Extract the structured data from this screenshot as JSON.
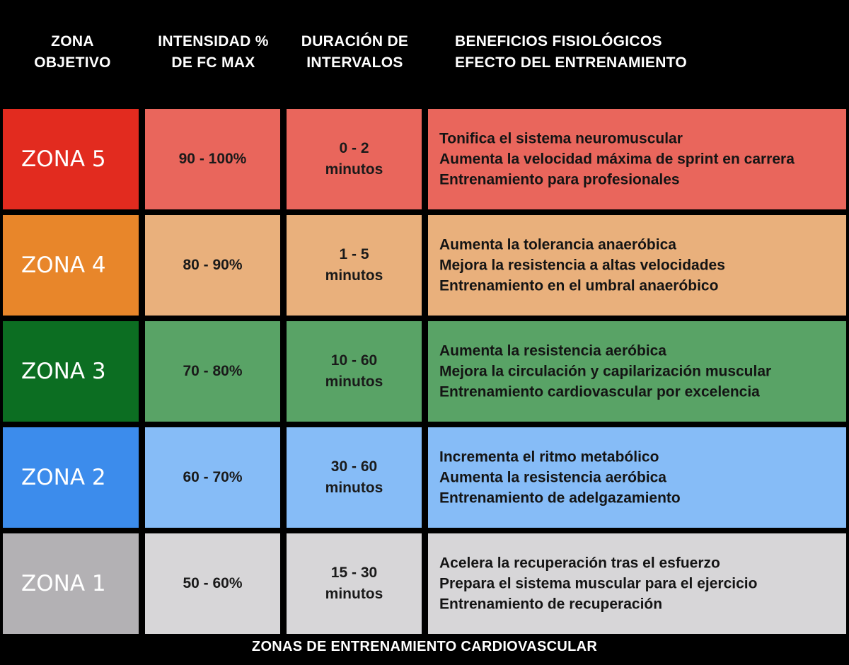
{
  "headers": {
    "zone": "ZONA\nOBJETIVO",
    "intensity": "INTENSIDAD %\nDE FC MAX",
    "duration": "DURACIÓN DE\nINTERVALOS",
    "benefits": "BENEFICIOS FISIOLÓGICOS\nEFECTO DEL ENTRENAMIENTO"
  },
  "rows": [
    {
      "zone": "ZONA 5",
      "intensity": "90 - 100%",
      "duration": "0 - 2\nminutos",
      "benefits": [
        "Tonifica el sistema neuromuscular",
        "Aumenta la velocidad máxima de sprint en carrera",
        "Entrenamiento para profesionales"
      ],
      "zone_color": "#e22b1f",
      "cell_color": "#e9665c"
    },
    {
      "zone": "ZONA 4",
      "intensity": "80 - 90%",
      "duration": "1 - 5\nminutos",
      "benefits": [
        "Aumenta la tolerancia anaeróbica",
        "Mejora la resistencia a altas velocidades",
        "Entrenamiento en el umbral anaeróbico"
      ],
      "zone_color": "#e8862a",
      "cell_color": "#e9b07c"
    },
    {
      "zone": "ZONA 3",
      "intensity": "70 - 80%",
      "duration": "10 - 60\nminutos",
      "benefits": [
        "Aumenta la resistencia aeróbica",
        "Mejora la circulación y capilarización muscular",
        "Entrenamiento cardiovascular por excelencia"
      ],
      "zone_color": "#0c6e22",
      "cell_color": "#59a366"
    },
    {
      "zone": "ZONA 2",
      "intensity": "60 - 70%",
      "duration": "30 - 60\nminutos",
      "benefits": [
        "Incrementa el ritmo metabólico",
        "Aumenta la resistencia aeróbica",
        "Entrenamiento de adelgazamiento"
      ],
      "zone_color": "#3c8cec",
      "cell_color": "#86bcf7"
    },
    {
      "zone": "ZONA 1",
      "intensity": "50 - 60%",
      "duration": "15 - 30\nminutos",
      "benefits": [
        "Acelera la recuperación tras el esfuerzo",
        "Prepara el sistema muscular para el ejercicio",
        "Entrenamiento de recuperación"
      ],
      "zone_color": "#b3b1b4",
      "cell_color": "#d7d6d8"
    }
  ],
  "footer": "ZONAS DE ENTRENAMIENTO CARDIOVASCULAR"
}
